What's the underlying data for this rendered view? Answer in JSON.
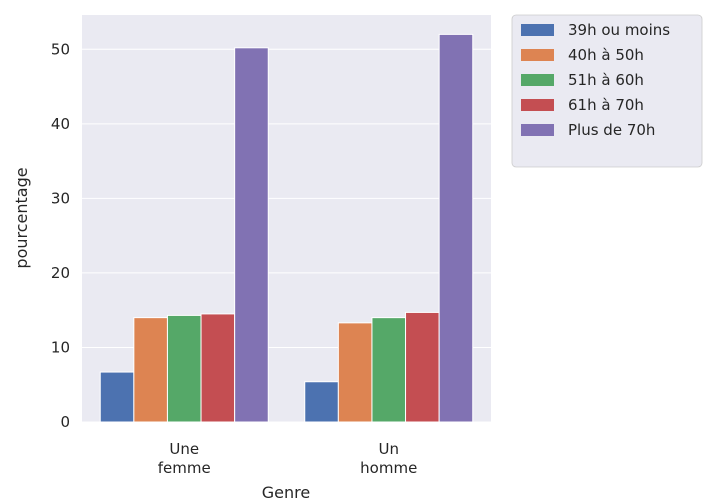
{
  "chart_data": {
    "type": "bar",
    "categories": [
      [
        "Une",
        "femme"
      ],
      [
        "Un",
        "homme"
      ]
    ],
    "series": [
      {
        "name": "39h ou moins",
        "color": "#4c72b0",
        "values": [
          6.7,
          5.4
        ]
      },
      {
        "name": "40h à 50h",
        "color": "#dd8452",
        "values": [
          14.0,
          13.3
        ]
      },
      {
        "name": "51h à 60h",
        "color": "#55a868",
        "values": [
          14.3,
          14.0
        ]
      },
      {
        "name": "61h à 70h",
        "color": "#c44e52",
        "values": [
          14.5,
          14.7
        ]
      },
      {
        "name": "Plus de 70h",
        "color": "#8172b3",
        "values": [
          50.2,
          52.0
        ]
      }
    ],
    "xlabel": "Genre",
    "ylabel": "pourcentage",
    "ylim": [
      0,
      54.6
    ],
    "yticks": [
      0,
      10,
      20,
      30,
      40,
      50
    ],
    "grid": true,
    "background": "#eaeaf2",
    "legend_position": "outside-top-right"
  }
}
